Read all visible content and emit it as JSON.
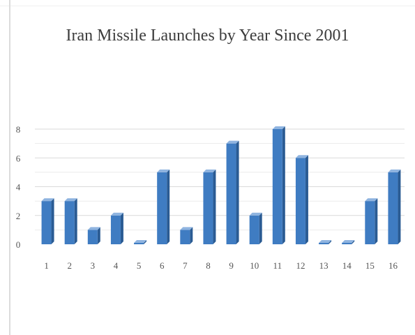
{
  "chart_data": {
    "type": "bar",
    "title": "Iran Missile Launches by Year Since 2001",
    "xlabel": "",
    "ylabel": "",
    "categories": [
      "1",
      "2",
      "3",
      "4",
      "5",
      "6",
      "7",
      "8",
      "9",
      "10",
      "11",
      "12",
      "13",
      "14",
      "15",
      "16"
    ],
    "values": [
      3,
      3,
      1,
      2,
      0,
      5,
      1,
      5,
      7,
      2,
      8,
      6,
      0,
      0,
      3,
      5
    ],
    "ylim": [
      0,
      8
    ],
    "yticks": [
      "0",
      "2",
      "4",
      "6",
      "8"
    ],
    "grid": true,
    "legend": "none",
    "colors": {
      "bar_front": "#3f7cc2",
      "bar_side": "#2a5b93",
      "bar_top": "#8fb4e0",
      "grid": "#d9d9d9",
      "title": "#3c3c3c",
      "tick": "#555555"
    }
  }
}
